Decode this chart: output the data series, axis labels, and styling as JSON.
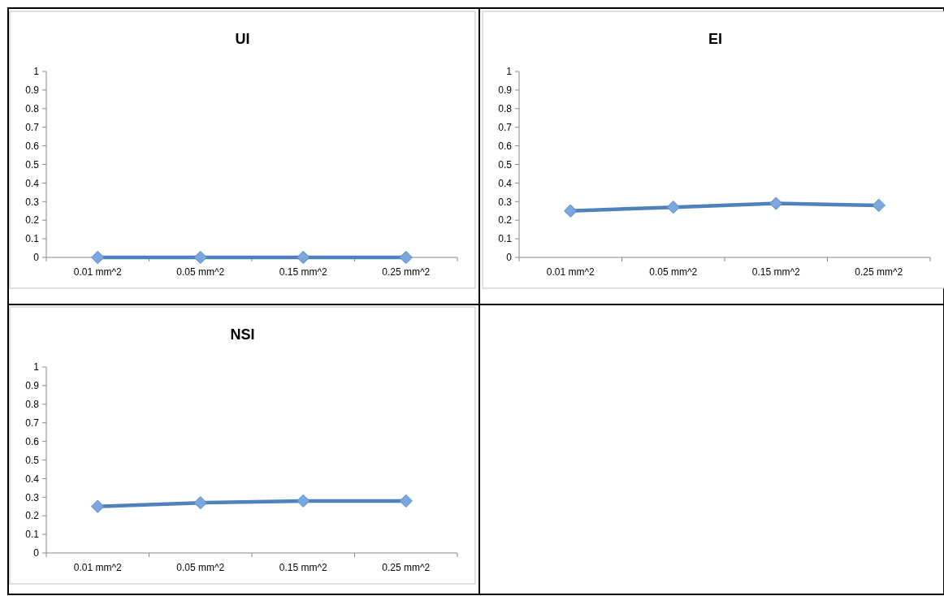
{
  "chart_data": [
    {
      "type": "line",
      "title": "UI",
      "categories": [
        "0.01 mm^2",
        "0.05 mm^2",
        "0.15 mm^2",
        "0.25 mm^2"
      ],
      "series": [
        {
          "color": "#4f81bd",
          "values": [
            0,
            0,
            0,
            0
          ]
        }
      ],
      "ylim": [
        0,
        1
      ],
      "yticks": [
        0,
        0.1,
        0.2,
        0.3,
        0.4,
        0.5,
        0.6,
        0.7,
        0.8,
        0.9,
        1
      ],
      "marker": "diamond",
      "grid": false
    },
    {
      "type": "line",
      "title": "EI",
      "categories": [
        "0.01 mm^2",
        "0.05 mm^2",
        "0.15 mm^2",
        "0.25 mm^2"
      ],
      "series": [
        {
          "color": "#4f81bd",
          "values": [
            0.25,
            0.27,
            0.29,
            0.28
          ]
        }
      ],
      "ylim": [
        0,
        1
      ],
      "yticks": [
        0,
        0.1,
        0.2,
        0.3,
        0.4,
        0.5,
        0.6,
        0.7,
        0.8,
        0.9,
        1
      ],
      "marker": "diamond",
      "grid": false
    },
    {
      "type": "line",
      "title": "NSI",
      "categories": [
        "0.01 mm^2",
        "0.05 mm^2",
        "0.15 mm^2",
        "0.25 mm^2"
      ],
      "series": [
        {
          "color": "#4f81bd",
          "values": [
            0.25,
            0.27,
            0.28,
            0.28
          ]
        }
      ],
      "ylim": [
        0,
        1
      ],
      "yticks": [
        0,
        0.1,
        0.2,
        0.3,
        0.4,
        0.5,
        0.6,
        0.7,
        0.8,
        0.9,
        1
      ],
      "marker": "diamond",
      "grid": false
    }
  ]
}
